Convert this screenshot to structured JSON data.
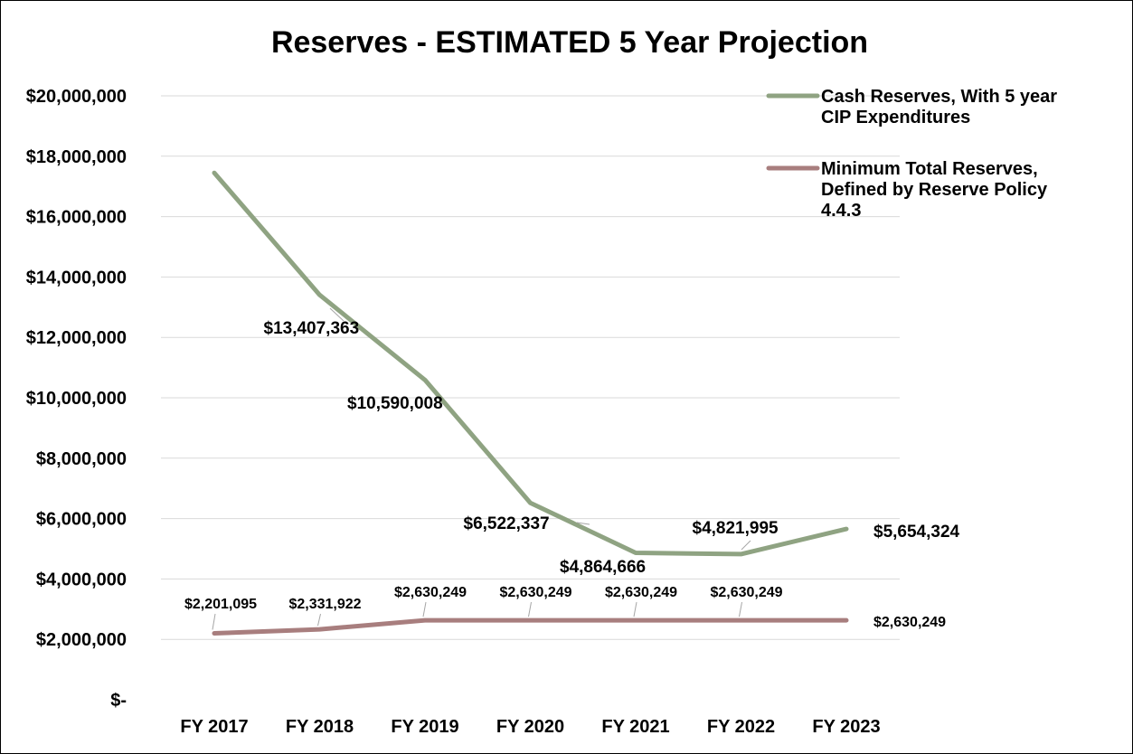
{
  "chart_data": {
    "type": "line",
    "title": "Reserves - ESTIMATED 5 Year Projection",
    "categories": [
      "FY 2017",
      "FY 2018",
      "FY 2019",
      "FY 2020",
      "FY 2021",
      "FY 2022",
      "FY 2023"
    ],
    "ylim": [
      0,
      20000000
    ],
    "yticks": [
      0,
      2000000,
      4000000,
      6000000,
      8000000,
      10000000,
      12000000,
      14000000,
      16000000,
      18000000,
      20000000
    ],
    "ytick_labels": [
      "$-",
      "$2,000,000",
      "$4,000,000",
      "$6,000,000",
      "$8,000,000",
      "$10,000,000",
      "$12,000,000",
      "$14,000,000",
      "$16,000,000",
      "$18,000,000",
      "$20,000,000"
    ],
    "grid": true,
    "legend_position": "top-right",
    "series": [
      {
        "name": "Cash Reserves, With 5 year CIP Expenditures",
        "legend_lines": [
          "Cash Reserves, With 5 year",
          "CIP Expenditures"
        ],
        "color": "#8FA382",
        "values": [
          17450000,
          13407363,
          10590008,
          6522337,
          4864666,
          4821995,
          5654324
        ],
        "labels": [
          "",
          "$13,407,363",
          "$10,590,008",
          "$6,522,337",
          "$4,864,666",
          "$4,821,995",
          "$5,654,324"
        ]
      },
      {
        "name": "Minimum Total Reserves, Defined by Reserve Policy 4.4.3",
        "legend_lines": [
          "Minimum Total Reserves,",
          "Defined by Reserve Policy",
          "4.4.3"
        ],
        "color": "#A87E7E",
        "values": [
          2201095,
          2331922,
          2630249,
          2630249,
          2630249,
          2630249,
          2630249
        ],
        "labels": [
          "$2,201,095",
          "$2,331,922",
          "$2,630,249",
          "$2,630,249",
          "$2,630,249",
          "$2,630,249",
          "$2,630,249"
        ]
      }
    ]
  }
}
